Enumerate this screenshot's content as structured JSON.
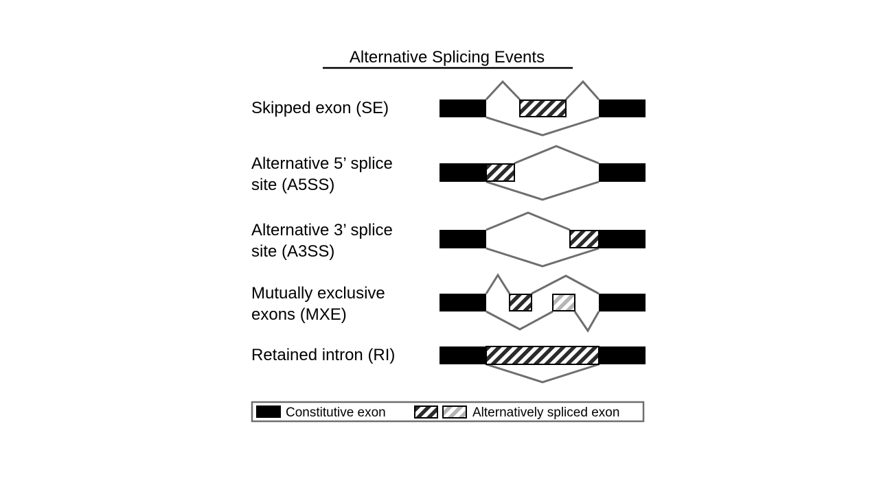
{
  "title": "Alternative Splicing Events",
  "colors": {
    "constitutive": "#000000",
    "junction": "#6e6e6e",
    "hatch_dark": "#2b2b2b",
    "hatch_light": "#b5b5b5",
    "legend_border": "#6e6e6e"
  },
  "events": [
    {
      "id": "se",
      "label_lines": [
        "Skipped exon (SE)"
      ],
      "alt_exons": 1,
      "pattern": "hatch-dark"
    },
    {
      "id": "a5ss",
      "label_lines": [
        "Alternative 5’ splice",
        "site (A5SS)"
      ],
      "alt_exons": 1,
      "pattern": "hatch-dark"
    },
    {
      "id": "a3ss",
      "label_lines": [
        "Alternative 3’ splice",
        "site (A3SS)"
      ],
      "alt_exons": 1,
      "pattern": "hatch-dark"
    },
    {
      "id": "mxe",
      "label_lines": [
        "Mutually exclusive",
        "exons (MXE)"
      ],
      "alt_exons": 2,
      "pattern": "hatch-dark+hatch-light"
    },
    {
      "id": "ri",
      "label_lines": [
        "Retained intron (RI)"
      ],
      "alt_exons": 1,
      "pattern": "hatch-dark"
    }
  ],
  "legend": {
    "constitutive_label": "Constitutive exon",
    "alternative_label": "Alternatively spliced exon"
  }
}
